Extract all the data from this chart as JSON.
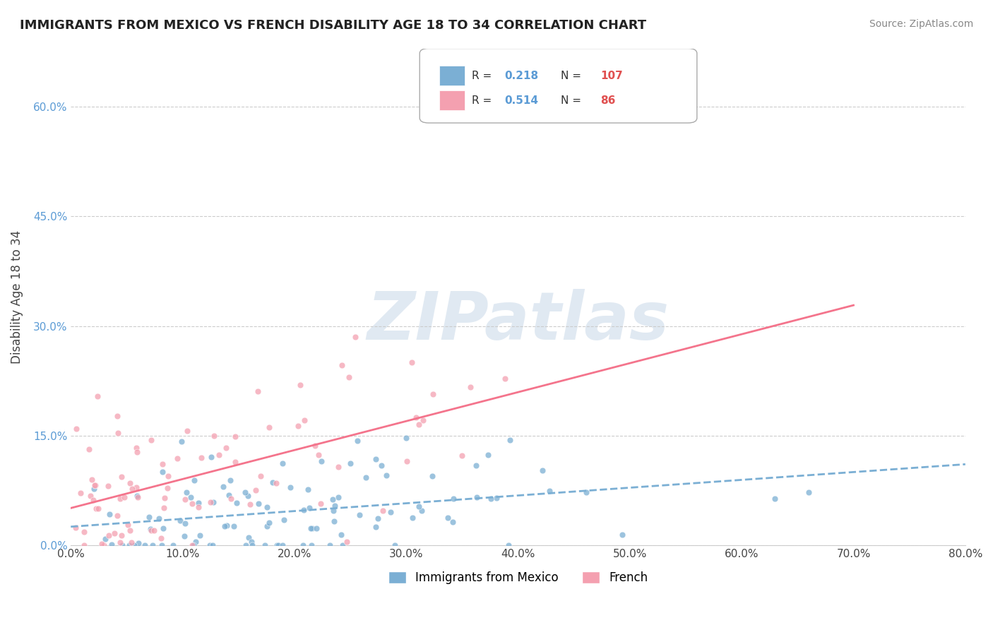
{
  "title": "IMMIGRANTS FROM MEXICO VS FRENCH DISABILITY AGE 18 TO 34 CORRELATION CHART",
  "source": "Source: ZipAtlas.com",
  "xlabel": "",
  "ylabel": "Disability Age 18 to 34",
  "legend1_label": "Immigrants from Mexico",
  "legend2_label": "French",
  "R1": 0.218,
  "N1": 107,
  "R2": 0.514,
  "N2": 86,
  "color1": "#7bafd4",
  "color2": "#f4a0b0",
  "trendline1_color": "#7bafd4",
  "trendline2_color": "#f4748c",
  "xlim": [
    0.0,
    0.8
  ],
  "ylim": [
    0.0,
    0.68
  ],
  "yticks": [
    0.0,
    0.15,
    0.3,
    0.45,
    0.6
  ],
  "xticks": [
    0.0,
    0.1,
    0.2,
    0.3,
    0.4,
    0.5,
    0.6,
    0.7,
    0.8
  ],
  "seed1": 42,
  "seed2": 99,
  "bg_color": "#ffffff",
  "watermark": "ZIPatlas",
  "watermark_color": "#c8d8e8"
}
